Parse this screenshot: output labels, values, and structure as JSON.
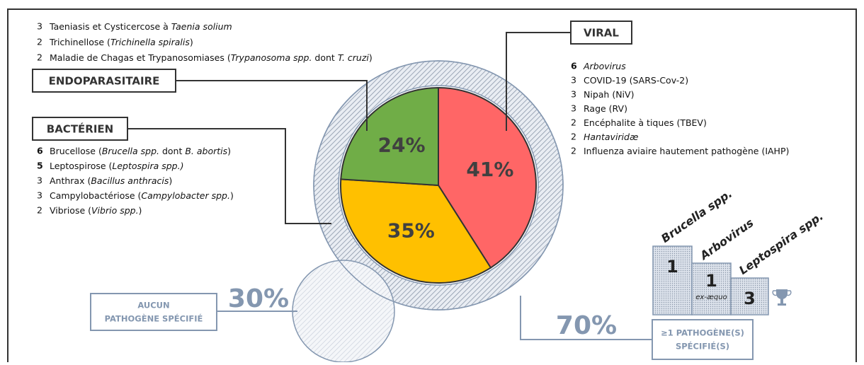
{
  "chart_data": [
    {
      "type": "pie",
      "categories": [
        "VIRAL",
        "BACTÉRIEN",
        "ENDOPARASITAIRE"
      ],
      "values": [
        41,
        35,
        24
      ],
      "value_labels": [
        "41%",
        "35%",
        "24%"
      ],
      "colors": [
        "#ff6666",
        "#ffc000",
        "#70ad47"
      ]
    },
    {
      "type": "circles",
      "values": [
        70,
        30
      ],
      "value_labels": [
        "70%",
        "30%"
      ],
      "label_lines": [
        [
          "≥1 PATHOGÈNE(S)",
          "SPÉCIFIÉ(S)"
        ],
        [
          "AUCUN",
          "PATHOGÈNE SPÉCIFIÉ"
        ]
      ],
      "color": "#8497b0"
    }
  ],
  "lists": {
    "endoparasitaire": [
      {
        "count": 3,
        "text": [
          {
            "t": "Taeniasis et Cysticercose à "
          },
          {
            "t": "Taenia solium",
            "italic": true
          }
        ]
      },
      {
        "count": 2,
        "text": [
          {
            "t": "Trichinellose ("
          },
          {
            "t": "Trichinella spiralis",
            "italic": true
          },
          {
            "t": ")"
          }
        ]
      },
      {
        "count": 2,
        "text": [
          {
            "t": "Maladie de Chagas et Trypanosomiases ("
          },
          {
            "t": "Trypanosoma spp.",
            "italic": true
          },
          {
            "t": " dont "
          },
          {
            "t": "T. cruzi",
            "italic": true
          },
          {
            "t": ")"
          }
        ]
      }
    ],
    "viral": [
      {
        "count": 6,
        "bold": true,
        "text": [
          {
            "t": "Arbovirus",
            "italic": true
          }
        ]
      },
      {
        "count": 3,
        "text": [
          {
            "t": "COVID-19 (SARS-Cov-2)"
          }
        ]
      },
      {
        "count": 3,
        "text": [
          {
            "t": "Nipah (NiV)"
          }
        ]
      },
      {
        "count": 3,
        "text": [
          {
            "t": "Rage (RV)"
          }
        ]
      },
      {
        "count": 2,
        "text": [
          {
            "t": "Encéphalite à tiques (TBEV)"
          }
        ]
      },
      {
        "count": 2,
        "text": [
          {
            "t": "Hantaviridæ",
            "italic": true
          }
        ]
      },
      {
        "count": 2,
        "text": [
          {
            "t": "Influenza aviaire hautement pathogène (IAHP)"
          }
        ]
      }
    ],
    "bacterien": [
      {
        "count": 6,
        "bold": true,
        "text": [
          {
            "t": "Brucellose ("
          },
          {
            "t": "Brucella spp.",
            "italic": true
          },
          {
            "t": " dont "
          },
          {
            "t": "B. abortis",
            "italic": true
          },
          {
            "t": ")"
          }
        ]
      },
      {
        "count": 5,
        "bold": true,
        "text": [
          {
            "t": "Leptospirose ("
          },
          {
            "t": "Leptospira spp.)",
            "italic": true
          }
        ]
      },
      {
        "count": 3,
        "text": [
          {
            "t": "Anthrax ("
          },
          {
            "t": "Bacillus anthracis",
            "italic": true
          },
          {
            "t": ")"
          }
        ]
      },
      {
        "count": 3,
        "text": [
          {
            "t": "Campylobactériose ("
          },
          {
            "t": "Campylobacter spp.",
            "italic": true
          },
          {
            "t": ")"
          }
        ]
      },
      {
        "count": 2,
        "text": [
          {
            "t": "Vibriose ("
          },
          {
            "t": "Vibrio spp.",
            "italic": true
          },
          {
            "t": ")"
          }
        ]
      }
    ]
  },
  "podium": {
    "places": [
      {
        "name": "Brucella spp.",
        "rank": 1
      },
      {
        "name": "Arbovirus",
        "rank": 1,
        "note": "ex-æquo"
      },
      {
        "name": "Leptospira spp.",
        "rank": 3
      }
    ]
  }
}
